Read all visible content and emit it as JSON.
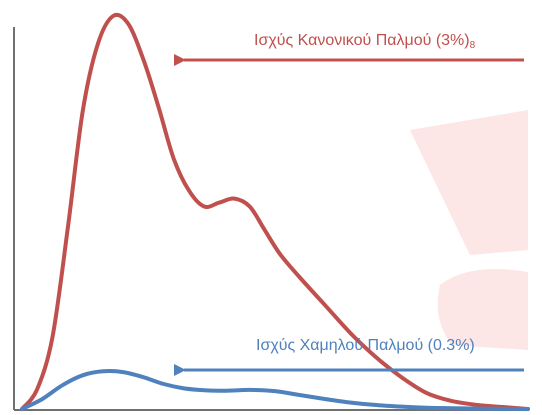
{
  "colors": {
    "normal_curve": "#c0504d",
    "low_curve": "#4f81bd",
    "axis": "#707070",
    "watermark": "#fde4e4"
  },
  "annotations": {
    "normal_text": "Ισχύς Κανονικού Παλμού (3%)",
    "normal_sub": "8",
    "low_text": "Ισχύς Χαμηλού Παλμού (0.3%)"
  },
  "chart_data": {
    "type": "line",
    "title": "",
    "xlabel": "",
    "ylabel": "",
    "ticks_shown": false,
    "grid": false,
    "xlim": [
      0,
      100
    ],
    "ylim": [
      0,
      100
    ],
    "series": [
      {
        "name": "Ισχύς Κανονικού Παλμού (3%)",
        "color": "#c0504d",
        "x": [
          0,
          3,
          6,
          9,
          12,
          15,
          18,
          21,
          24,
          27,
          30,
          33,
          36,
          39,
          42,
          45,
          48,
          51,
          55,
          60,
          65,
          70,
          75,
          80,
          85,
          90,
          95,
          100
        ],
        "y": [
          0,
          5,
          18,
          45,
          75,
          92,
          99,
          97,
          88,
          76,
          63,
          55,
          51,
          52,
          53,
          51,
          45,
          39,
          33,
          26,
          19,
          13,
          8,
          4,
          2,
          1,
          0.5,
          0
        ]
      },
      {
        "name": "Ισχύς Χαμηλού Παλμού (0.3%)",
        "color": "#4f81bd",
        "x": [
          0,
          4,
          8,
          12,
          16,
          20,
          24,
          28,
          32,
          36,
          40,
          45,
          50,
          55,
          60,
          65,
          70,
          75,
          80,
          85,
          90,
          95,
          100
        ],
        "y": [
          0,
          2.5,
          6,
          8.5,
          9.5,
          9.3,
          8,
          6.3,
          5.2,
          4.7,
          4.6,
          4.8,
          4.5,
          3.5,
          2.5,
          1.6,
          1,
          0.6,
          0.3,
          0.2,
          0.1,
          0.05,
          0
        ]
      }
    ]
  }
}
